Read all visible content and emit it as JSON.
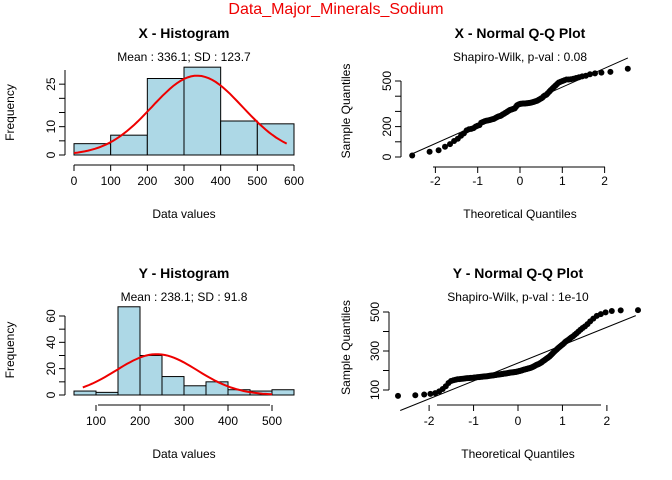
{
  "suptitle": "Data_Major_Minerals_Sodium",
  "colors": {
    "bar_fill": "#add8e6",
    "curve": "#ee0000",
    "suptitle": "#ee0000",
    "points": "#000000"
  },
  "chart_data": [
    {
      "type": "bar",
      "title": "X - Histogram",
      "subtitle": "Mean : 336.1; SD : 123.7",
      "xlabel": "Data values",
      "ylabel": "Frequency",
      "xlim": [
        0,
        600
      ],
      "ylim": [
        0,
        30
      ],
      "xticks": [
        "0",
        "100",
        "200",
        "300",
        "400",
        "500",
        "600"
      ],
      "yticks": [
        "0",
        "10",
        "25"
      ],
      "bins": [
        {
          "x0": 0,
          "x1": 100,
          "count": 4
        },
        {
          "x0": 100,
          "x1": 200,
          "count": 7
        },
        {
          "x0": 200,
          "x1": 300,
          "count": 27
        },
        {
          "x0": 300,
          "x1": 400,
          "count": 31
        },
        {
          "x0": 400,
          "x1": 500,
          "count": 12
        },
        {
          "x0": 500,
          "x1": 600,
          "count": 11
        }
      ],
      "normal_curve": {
        "mean": 336.1,
        "sd": 123.7,
        "x_range": [
          0,
          580
        ],
        "peak": 28
      }
    },
    {
      "type": "scatter",
      "title": "X - Normal Q-Q Plot",
      "subtitle": "Shapiro-Wilk, p-val : 0.08",
      "xlabel": "Theoretical Quantiles",
      "ylabel": "Sample Quantiles",
      "xlim": [
        -2.6,
        2.6
      ],
      "ylim": [
        0,
        640
      ],
      "xticks": [
        "-2",
        "-1",
        "0",
        "1",
        "2"
      ],
      "yticks": [
        "0",
        "200",
        "500"
      ],
      "n_points": 92,
      "sample_quantiles": [
        10,
        35,
        45,
        68,
        85,
        105,
        120,
        140,
        155,
        175,
        182,
        185,
        190,
        200,
        205,
        210,
        225,
        230,
        235,
        238,
        240,
        243,
        245,
        248,
        250,
        255,
        260,
        265,
        268,
        270,
        275,
        280,
        285,
        290,
        295,
        300,
        305,
        310,
        312,
        315,
        318,
        320,
        330,
        340,
        345,
        348,
        350,
        350,
        352,
        352,
        352,
        353,
        354,
        355,
        356,
        358,
        360,
        362,
        365,
        368,
        370,
        375,
        380,
        385,
        390,
        400,
        405,
        410,
        420,
        430,
        440,
        450,
        460,
        470,
        480,
        490,
        495,
        500,
        505,
        510,
        510,
        512,
        515,
        520,
        525,
        530,
        535,
        545,
        550,
        555,
        560,
        580
      ],
      "ref_line": {
        "intercept": 336.1,
        "slope": 123.7
      }
    },
    {
      "type": "bar",
      "title": "Y - Histogram",
      "subtitle": "Mean : 238.1; SD : 91.8",
      "xlabel": "Data values",
      "ylabel": "Frequency",
      "xlim": [
        50,
        550
      ],
      "ylim": [
        0,
        65
      ],
      "xticks": [
        "100",
        "200",
        "300",
        "400",
        "500"
      ],
      "yticks": [
        "0",
        "20",
        "40",
        "60"
      ],
      "bins": [
        {
          "x0": 50,
          "x1": 100,
          "count": 3
        },
        {
          "x0": 100,
          "x1": 150,
          "count": 2
        },
        {
          "x0": 150,
          "x1": 200,
          "count": 67
        },
        {
          "x0": 200,
          "x1": 250,
          "count": 30
        },
        {
          "x0": 250,
          "x1": 300,
          "count": 14
        },
        {
          "x0": 300,
          "x1": 350,
          "count": 7
        },
        {
          "x0": 350,
          "x1": 400,
          "count": 10
        },
        {
          "x0": 400,
          "x1": 450,
          "count": 4
        },
        {
          "x0": 450,
          "x1": 500,
          "count": 3
        },
        {
          "x0": 500,
          "x1": 550,
          "count": 4
        }
      ],
      "normal_curve": {
        "mean": 238.1,
        "sd": 91.8,
        "x_range": [
          70,
          500
        ],
        "peak": 31
      }
    },
    {
      "type": "scatter",
      "title": "Y - Normal Q-Q Plot",
      "subtitle": "Shapiro-Wilk, p-val : 1e-10",
      "xlabel": "Theoretical Quantiles",
      "ylabel": "Sample Quantiles",
      "xlim": [
        -2.7,
        2.7
      ],
      "ylim": [
        50,
        540
      ],
      "xticks": [
        "-2",
        "-1",
        "0",
        "1",
        "2"
      ],
      "yticks": [
        "100",
        "300",
        "500"
      ],
      "n_points": 144,
      "sample_quantiles_key": [
        {
          "p": 0.0,
          "v": 70
        },
        {
          "p": 0.02,
          "v": 80
        },
        {
          "p": 0.03,
          "v": 85
        },
        {
          "p": 0.045,
          "v": 110
        },
        {
          "p": 0.06,
          "v": 145
        },
        {
          "p": 0.08,
          "v": 155
        },
        {
          "p": 0.12,
          "v": 160
        },
        {
          "p": 0.5,
          "v": 195
        },
        {
          "p": 0.62,
          "v": 215
        },
        {
          "p": 0.7,
          "v": 240
        },
        {
          "p": 0.76,
          "v": 270
        },
        {
          "p": 0.84,
          "v": 330
        },
        {
          "p": 0.9,
          "v": 380
        },
        {
          "p": 0.94,
          "v": 430
        },
        {
          "p": 0.965,
          "v": 480
        },
        {
          "p": 0.985,
          "v": 505
        },
        {
          "p": 1.0,
          "v": 510
        }
      ],
      "ref_line": {
        "intercept": 238.1,
        "slope": 91.8
      }
    }
  ]
}
